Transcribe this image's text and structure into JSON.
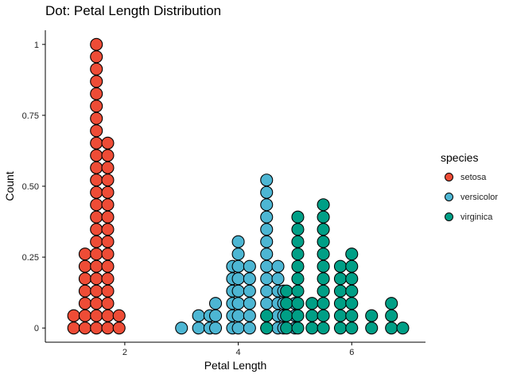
{
  "chart_data": {
    "type": "scatter",
    "subtype": "dotplot",
    "title": "Dot: Petal Length Distribution",
    "xlabel": "Petal Length",
    "ylabel": "Count",
    "xlim": [
      0.6,
      7.3
    ],
    "ylim": [
      -0.05,
      1.05
    ],
    "xticks": [
      2,
      4,
      6
    ],
    "yticks": [
      0,
      0.25,
      0.5,
      0.75,
      1
    ],
    "ytick_labels": [
      "0",
      "0.25",
      "0.50",
      "0.75",
      "1"
    ],
    "grid": false,
    "legend_title": "species",
    "legend_position": "right",
    "series": [
      {
        "name": "setosa",
        "color": "#EE4C36",
        "points": [
          {
            "x": 1.1,
            "count": 2
          },
          {
            "x": 1.3,
            "count": 7
          },
          {
            "x": 1.5,
            "count": 24
          },
          {
            "x": 1.7,
            "count": 16
          },
          {
            "x": 1.9,
            "count": 2
          }
        ]
      },
      {
        "name": "versicolor",
        "color": "#4DB6D3",
        "points": [
          {
            "x": 3.0,
            "count": 1
          },
          {
            "x": 3.3,
            "count": 2
          },
          {
            "x": 3.5,
            "count": 2
          },
          {
            "x": 3.6,
            "count": 3
          },
          {
            "x": 3.9,
            "count": 6
          },
          {
            "x": 4.0,
            "count": 8
          },
          {
            "x": 4.2,
            "count": 6
          },
          {
            "x": 4.5,
            "count": 13
          },
          {
            "x": 4.7,
            "count": 6
          },
          {
            "x": 4.8,
            "count": 4
          },
          {
            "x": 5.0,
            "count": 3
          }
        ]
      },
      {
        "name": "virginica",
        "color": "#009F86",
        "points": [
          {
            "x": 4.5,
            "count": 2
          },
          {
            "x": 4.85,
            "count": 4
          },
          {
            "x": 5.05,
            "count": 10
          },
          {
            "x": 5.3,
            "count": 3
          },
          {
            "x": 5.5,
            "count": 11
          },
          {
            "x": 5.8,
            "count": 6
          },
          {
            "x": 6.0,
            "count": 7
          },
          {
            "x": 6.35,
            "count": 2
          },
          {
            "x": 6.7,
            "count": 3
          },
          {
            "x": 6.9,
            "count": 1
          }
        ]
      }
    ]
  }
}
